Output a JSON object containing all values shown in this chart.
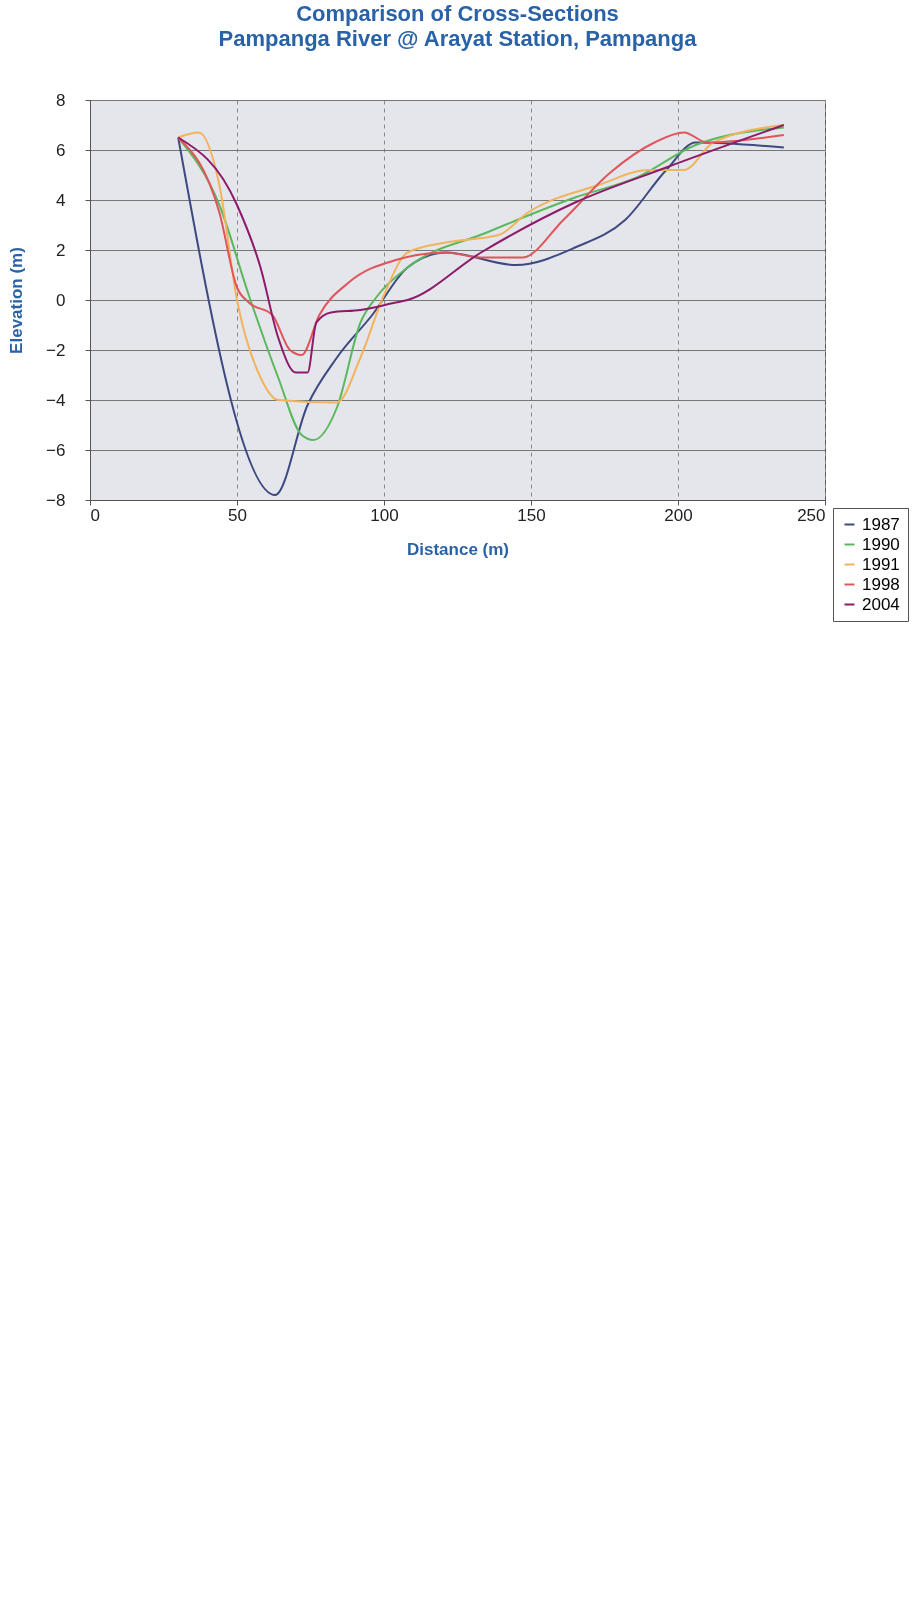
{
  "chart_data": {
    "type": "line",
    "title": "Comparison of Cross-Sections",
    "subtitle": "Pampanga River @ Arayat Station, Pampanga",
    "xlabel": "Distance (m)",
    "ylabel": "Elevation (m)",
    "xlim": [
      0,
      250
    ],
    "ylim": [
      -8,
      8
    ],
    "xticks": [
      0,
      50,
      100,
      150,
      200,
      250
    ],
    "yticks": [
      -8,
      -6,
      -4,
      -2,
      0,
      2,
      4,
      6,
      8
    ],
    "grid": true,
    "legend": "bottom right",
    "line_style": "solid",
    "series": [
      {
        "name": "1987",
        "color": "#3d4a80",
        "x": [
          30,
          63,
          74,
          84,
          96,
          108,
          121,
          145,
          165,
          182,
          196,
          206,
          236
        ],
        "values": [
          6.5,
          -7.8,
          -4.2,
          -2.3,
          -0.6,
          1.3,
          1.9,
          1.4,
          2.1,
          3.2,
          5.2,
          6.3,
          6.1
        ]
      },
      {
        "name": "1990",
        "color": "#5cb85c",
        "x": [
          30,
          44,
          54,
          64,
          72,
          76,
          84,
          92,
          98,
          108,
          135,
          165,
          186,
          206,
          236
        ],
        "values": [
          6.5,
          3.8,
          0.2,
          -3.1,
          -5.4,
          -5.6,
          -4.3,
          -0.9,
          0.2,
          1.3,
          2.7,
          4.1,
          4.9,
          6.2,
          6.9
        ]
      },
      {
        "name": "1991",
        "color": "#f2b35c",
        "x": [
          30,
          37,
          44,
          50,
          58,
          64,
          84,
          92,
          100,
          108,
          121,
          139,
          149,
          173,
          190,
          202,
          212,
          236
        ],
        "values": [
          6.5,
          6.7,
          4.6,
          0,
          -3.1,
          -4,
          -4.1,
          -2.3,
          0.2,
          1.9,
          2.3,
          2.6,
          3.5,
          4.6,
          5.2,
          5.2,
          6.3,
          7
        ]
      },
      {
        "name": "1998",
        "color": "#e0555a",
        "x": [
          30,
          44,
          50,
          54,
          62,
          68,
          72,
          78,
          88,
          104,
          121,
          133,
          147,
          161,
          177,
          192,
          202,
          210,
          236
        ],
        "values": [
          6.5,
          3.5,
          0.5,
          -0.1,
          -0.6,
          -2,
          -2.2,
          -0.6,
          0.7,
          1.6,
          1.9,
          1.7,
          1.7,
          3.2,
          5.1,
          6.3,
          6.7,
          6.3,
          6.6
        ]
      },
      {
        "name": "2004",
        "color": "#8e1a6a",
        "x": [
          30,
          50,
          58,
          64,
          70,
          74,
          77,
          82,
          92,
          104,
          108,
          133,
          165,
          196,
          236
        ],
        "values": [
          6.5,
          3.8,
          1.3,
          -1.5,
          -2.9,
          -2.9,
          -0.9,
          -0.5,
          -0.4,
          -0.1,
          0,
          1.9,
          3.9,
          5.3,
          7
        ]
      }
    ]
  }
}
